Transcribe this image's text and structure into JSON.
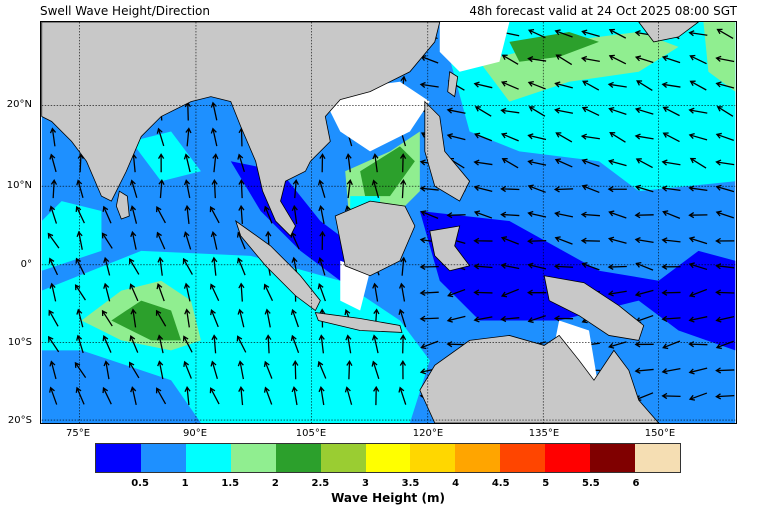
{
  "title_left": "Swell Wave Height/Direction",
  "title_right": "48h forecast valid at 24 Oct 2025 08:00 SGT",
  "map": {
    "lat_labels": [
      "20°N",
      "10°N",
      "0°",
      "10°S",
      "20°S"
    ],
    "lon_labels": [
      "75°E",
      "90°E",
      "105°E",
      "120°E",
      "135°E",
      "150°E"
    ],
    "land_color": "#c8c8c8",
    "no_data_color": "#ffffff"
  },
  "colorbar": {
    "label": "Wave Height (m)",
    "ticks": [
      "0.5",
      "1",
      "1.5",
      "2",
      "2.5",
      "3",
      "3.5",
      "4",
      "4.5",
      "5",
      "5.5",
      "6"
    ],
    "colors": [
      "#0000ff",
      "#1e90ff",
      "#00ffff",
      "#90ee90",
      "#2ca02c",
      "#9acd32",
      "#ffff00",
      "#ffd700",
      "#ffa500",
      "#ff4500",
      "#ff0000",
      "#800000",
      "#f5deb3"
    ]
  }
}
